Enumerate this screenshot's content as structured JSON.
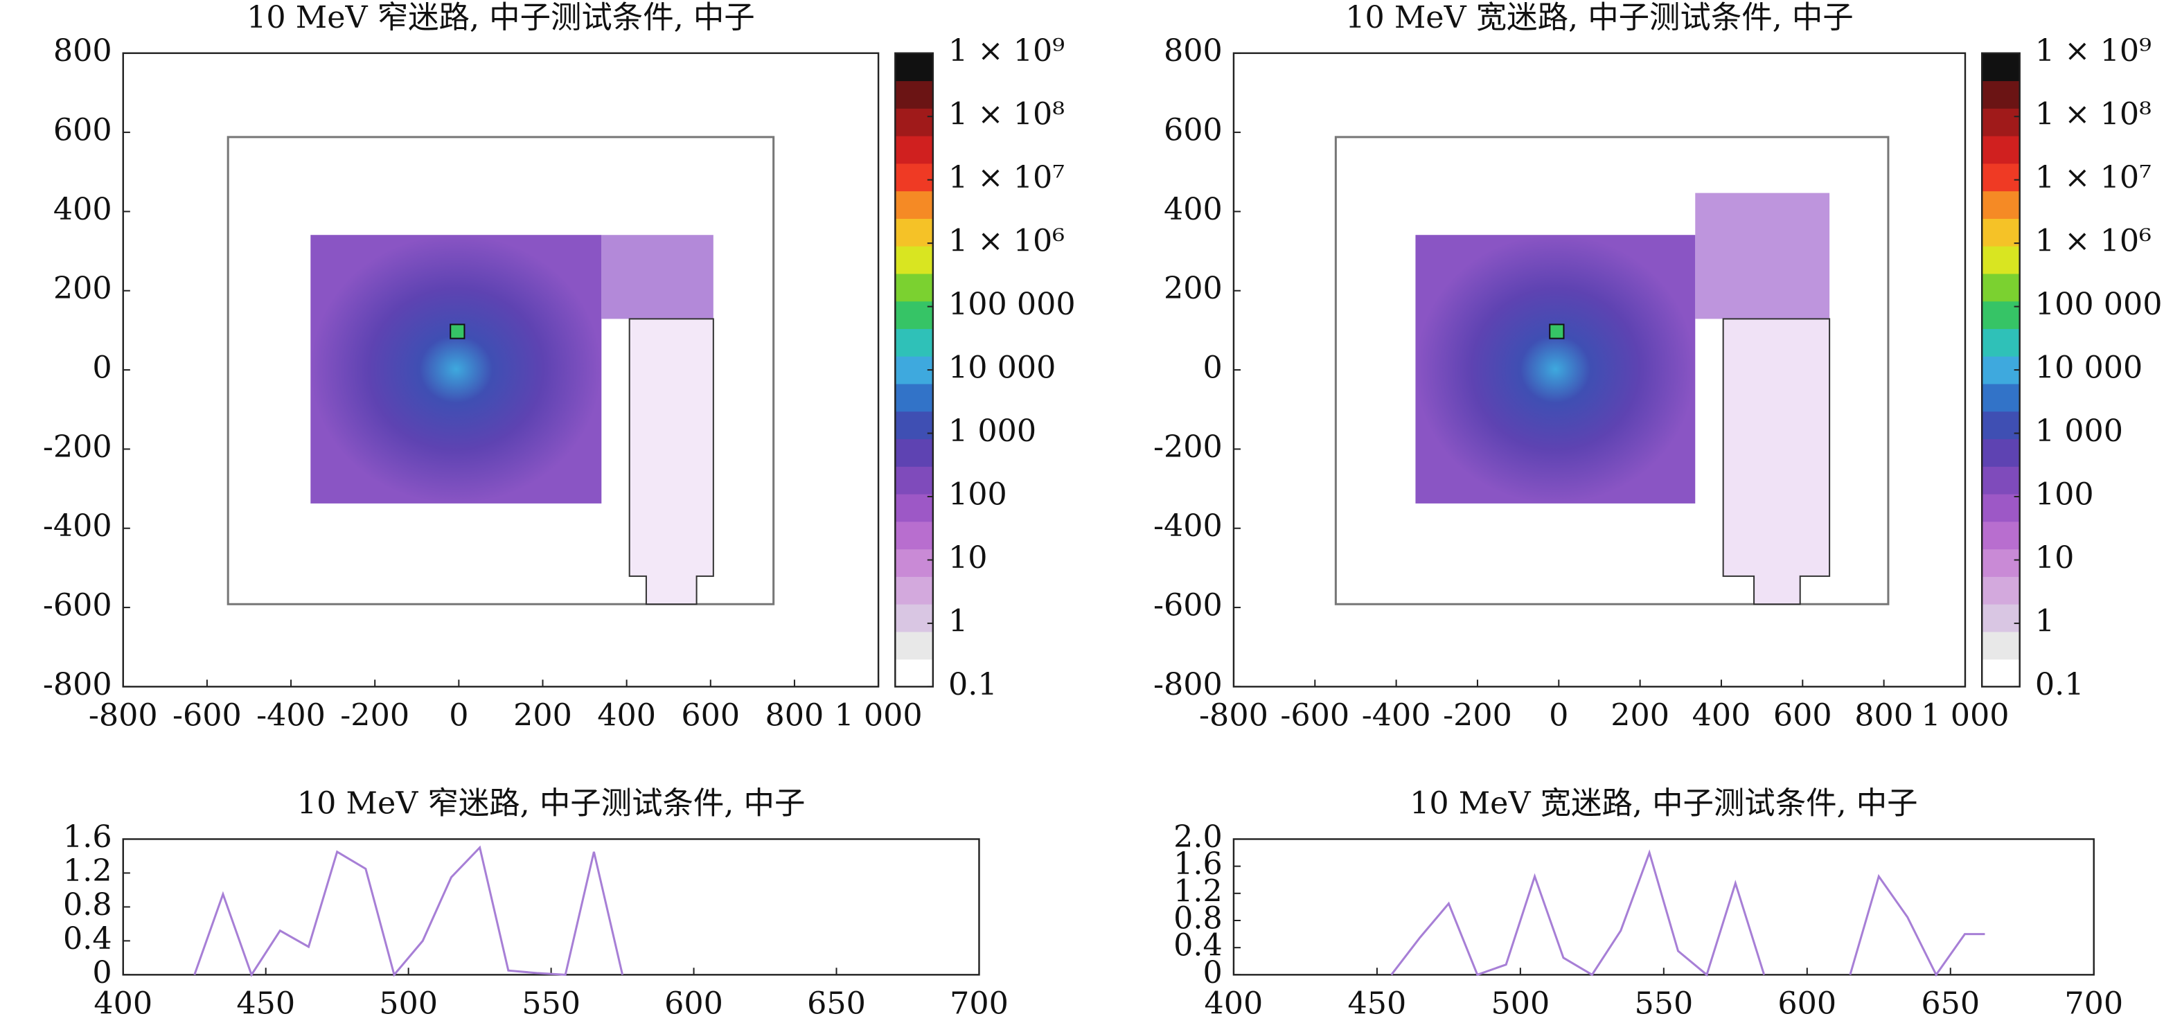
{
  "chart_data": [
    {
      "type": "heatmap",
      "title": "10 MeV 窄迷路, 中子测试条件, 中子",
      "xlim": [
        -800,
        1000
      ],
      "xticks": [
        -800,
        -600,
        -400,
        -200,
        0,
        200,
        400,
        600,
        800,
        {
          "value": 1000,
          "label": "1 000"
        }
      ],
      "ylim": [
        -800,
        800
      ],
      "yticks": [
        -800,
        -600,
        -400,
        -200,
        0,
        200,
        400,
        600,
        800
      ],
      "colorbar": {
        "scale": "log",
        "lim": [
          0.1,
          1000000000
        ],
        "ticks": [
          0.1,
          1,
          10,
          100,
          {
            "value": 1000,
            "label": "1 000"
          },
          {
            "value": 10000,
            "label": "10 000"
          },
          {
            "value": 100000,
            "label": "100 000"
          },
          {
            "value": 1000000,
            "label": "1 × 10⁶"
          },
          {
            "value": 10000000,
            "label": "1 × 10⁷"
          },
          {
            "value": 100000000,
            "label": "1 × 10⁸"
          },
          {
            "value": 1000000000,
            "label": "1 × 10⁹"
          }
        ],
        "colors": [
          "#ffffff",
          "#e8e8e8",
          "#d9c6e3",
          "#d3a9dd",
          "#c98ad6",
          "#b86ecf",
          "#9d58c6",
          "#7f4bbb",
          "#5e43b2",
          "#3f4fb3",
          "#3273c8",
          "#3ea9de",
          "#2fc1b8",
          "#36c466",
          "#7bd130",
          "#d9e521",
          "#f5c227",
          "#f58a25",
          "#ef3a24",
          "#d0201f",
          "#a01a1a",
          "#6b1414",
          "#111111"
        ]
      }
    },
    {
      "type": "heatmap",
      "title": "10 MeV 宽迷路, 中子测试条件, 中子",
      "xlim": [
        -800,
        1000
      ],
      "xticks": [
        -800,
        -600,
        -400,
        -200,
        0,
        200,
        400,
        600,
        800,
        {
          "value": 1000,
          "label": "1 000"
        }
      ],
      "ylim": [
        -800,
        800
      ],
      "yticks": [
        -800,
        -600,
        -400,
        -200,
        0,
        200,
        400,
        600,
        800
      ],
      "colorbar": {
        "scale": "log",
        "lim": [
          0.1,
          1000000000
        ],
        "ticks": [
          0.1,
          1,
          10,
          100,
          {
            "value": 1000,
            "label": "1 000"
          },
          {
            "value": 10000,
            "label": "10 000"
          },
          {
            "value": 100000,
            "label": "100 000"
          },
          {
            "value": 1000000,
            "label": "1 × 10⁶"
          },
          {
            "value": 10000000,
            "label": "1 × 10⁷"
          },
          {
            "value": 100000000,
            "label": "1 × 10⁸"
          },
          {
            "value": 1000000000,
            "label": "1 × 10⁹"
          }
        ],
        "colors": [
          "#ffffff",
          "#e8e8e8",
          "#d9c6e3",
          "#d3a9dd",
          "#c98ad6",
          "#b86ecf",
          "#9d58c6",
          "#7f4bbb",
          "#5e43b2",
          "#3f4fb3",
          "#3273c8",
          "#3ea9de",
          "#2fc1b8",
          "#36c466",
          "#7bd130",
          "#d9e521",
          "#f5c227",
          "#f58a25",
          "#ef3a24",
          "#d0201f",
          "#a01a1a",
          "#6b1414",
          "#111111"
        ]
      }
    },
    {
      "type": "line",
      "title": "10 MeV 窄迷路, 中子测试条件, 中子",
      "x": [
        425,
        435,
        445,
        455,
        465,
        475,
        485,
        495,
        505,
        515,
        525,
        535,
        545,
        555,
        565,
        575
      ],
      "series": [
        {
          "color": "#a77fd6",
          "values": [
            0,
            0.95,
            0,
            0.52,
            0.33,
            1.45,
            1.25,
            0,
            0.4,
            1.15,
            1.5,
            0.05,
            0.02,
            0,
            1.45,
            0
          ]
        }
      ],
      "xlim": [
        400,
        700
      ],
      "xticks": [
        400,
        450,
        500,
        550,
        600,
        650,
        700
      ],
      "ylim": [
        0,
        1.6
      ],
      "yticks": [
        0,
        0.4,
        0.8,
        1.2,
        1.6
      ]
    },
    {
      "type": "line",
      "title": "10 MeV 宽迷路, 中子测试条件, 中子",
      "x": [
        455,
        465,
        475,
        485,
        495,
        505,
        515,
        525,
        535,
        545,
        555,
        565,
        575,
        585,
        600,
        615,
        625,
        635,
        645,
        655,
        662
      ],
      "series": [
        {
          "color": "#a77fd6",
          "values": [
            0,
            0.55,
            1.05,
            0,
            0.15,
            1.45,
            0.25,
            0,
            0.65,
            1.8,
            0.35,
            0,
            1.35,
            0,
            null,
            0,
            1.45,
            0.85,
            0,
            0.6,
            0.6
          ]
        }
      ],
      "xlim": [
        400,
        700
      ],
      "xticks": [
        400,
        450,
        500,
        550,
        600,
        650,
        700
      ],
      "ylim": [
        0,
        2
      ],
      "yticks": [
        0,
        0.4,
        0.8,
        1.2,
        1.6,
        {
          "value": 2,
          "label": "2.0"
        }
      ]
    }
  ]
}
